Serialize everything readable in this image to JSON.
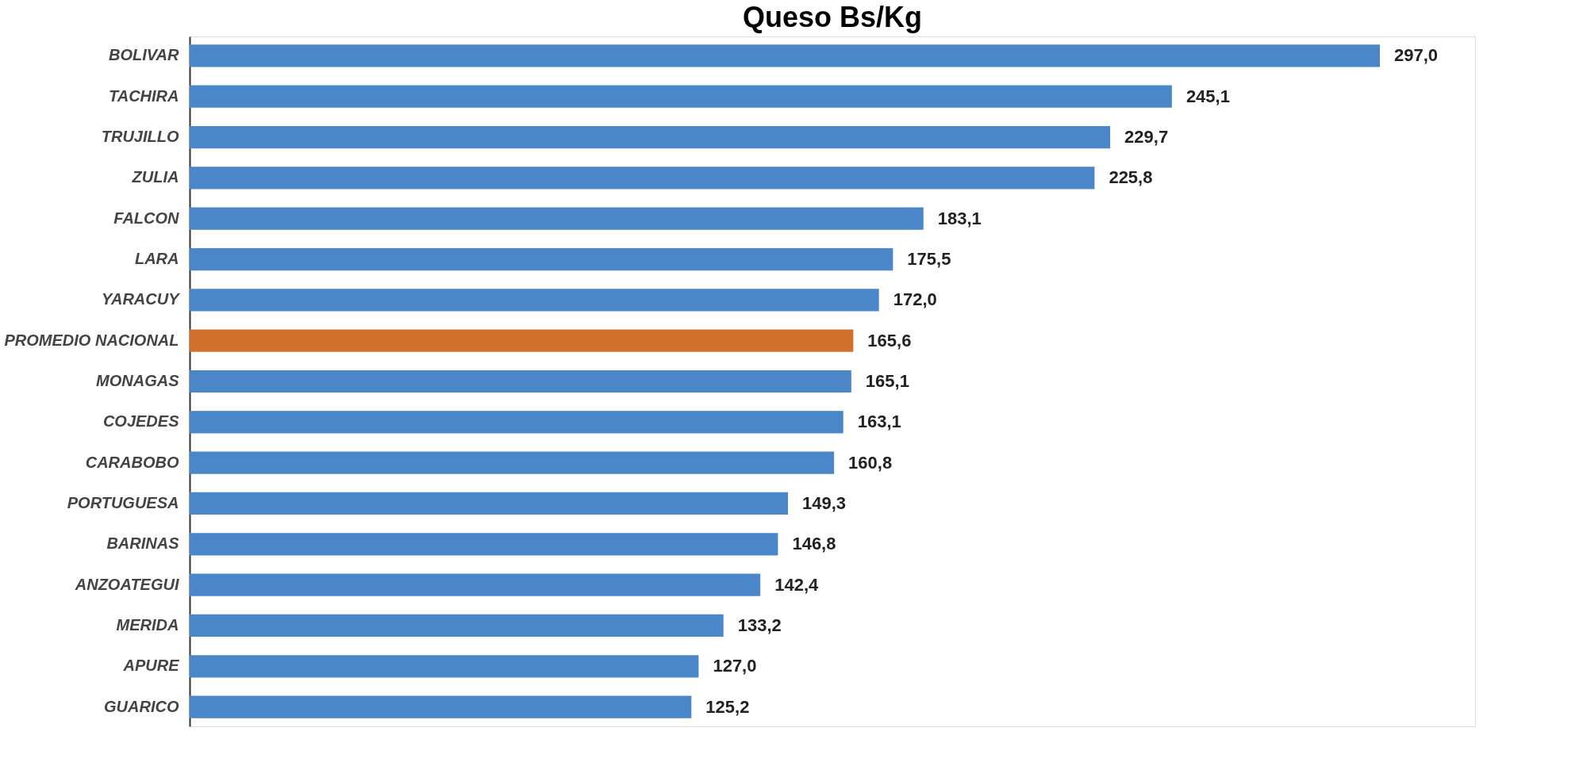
{
  "chart_data": {
    "type": "bar",
    "orientation": "horizontal",
    "title": "Queso Bs/Kg",
    "categories": [
      "BOLIVAR",
      "TACHIRA",
      "TRUJILLO",
      "ZULIA",
      "FALCON",
      "LARA",
      "YARACUY",
      "PROMEDIO NACIONAL",
      "MONAGAS",
      "COJEDES",
      "CARABOBO",
      "PORTUGUESA",
      "BARINAS",
      "ANZOATEGUI",
      "MERIDA",
      "APURE",
      "GUARICO"
    ],
    "values": [
      297.0,
      245.1,
      229.7,
      225.8,
      183.1,
      175.5,
      172.0,
      165.6,
      165.1,
      163.1,
      160.8,
      149.3,
      146.8,
      142.4,
      133.2,
      127.0,
      125.2
    ],
    "value_labels": [
      "297,0",
      "245,1",
      "229,7",
      "225,8",
      "183,1",
      "175,5",
      "172,0",
      "165,6",
      "165,1",
      "163,1",
      "160,8",
      "149,3",
      "146,8",
      "142,4",
      "133,2",
      "127,0",
      "125,2"
    ],
    "colors": [
      "#4a86c8",
      "#4a86c8",
      "#4a86c8",
      "#4a86c8",
      "#4a86c8",
      "#4a86c8",
      "#4a86c8",
      "#d2702e",
      "#4a86c8",
      "#4a86c8",
      "#4a86c8",
      "#4a86c8",
      "#4a86c8",
      "#4a86c8",
      "#4a86c8",
      "#4a86c8",
      "#4a86c8"
    ]
  }
}
